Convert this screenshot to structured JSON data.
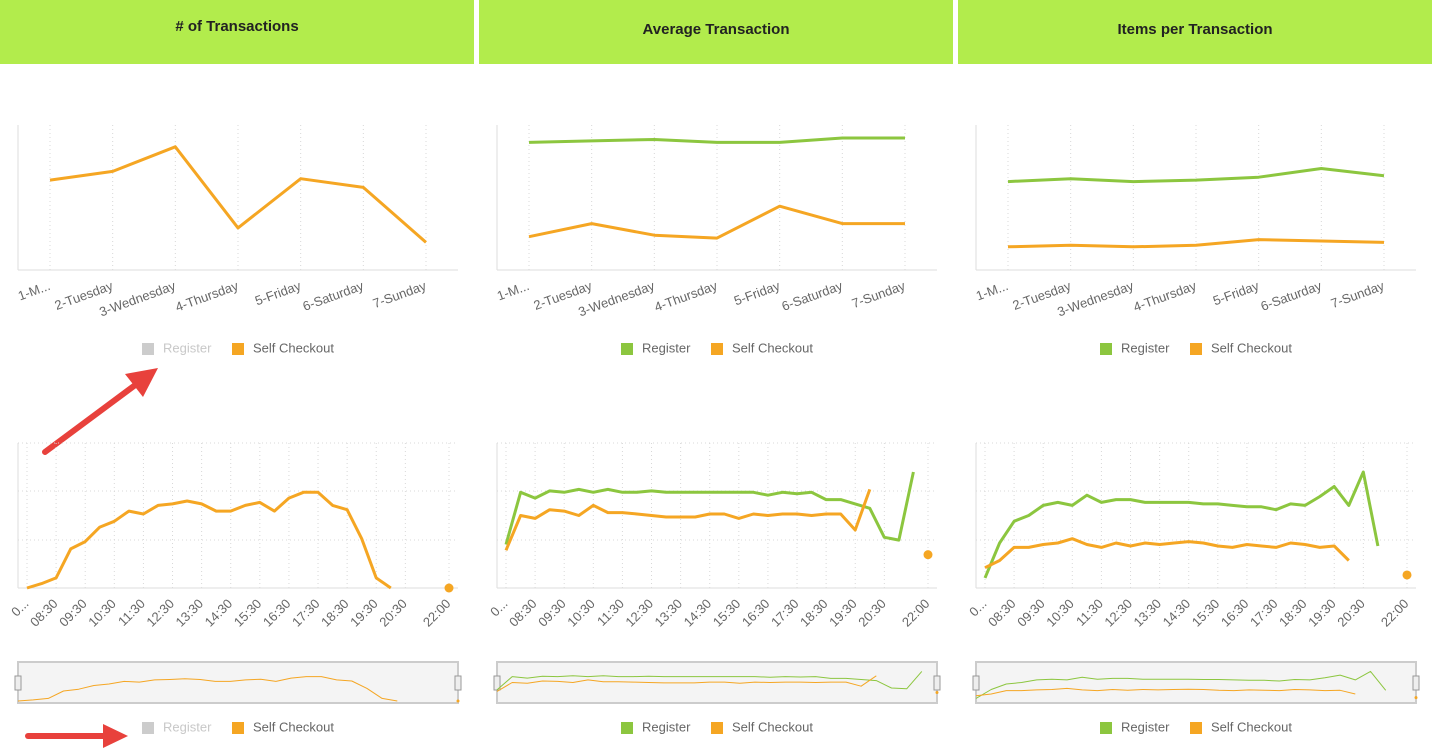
{
  "chart_data": [
    {
      "type": "line",
      "title": "# of Transactions",
      "categories": [
        "1-M...",
        "2-Tuesday",
        "3-Wednesday",
        "4-Thursday",
        "5-Friday",
        "6-Saturday",
        "7-Sunday"
      ],
      "ylim": [
        0,
        100
      ],
      "series": [
        {
          "name": "Register",
          "color": "#8cc63f",
          "visible": false,
          "values": [
            null,
            null,
            null,
            null,
            null,
            null,
            null
          ]
        },
        {
          "name": "Self Checkout",
          "color": "#f5a623",
          "values": [
            62,
            68,
            85,
            29,
            63,
            57,
            19
          ]
        }
      ]
    },
    {
      "type": "line",
      "title": "Average Transaction",
      "categories": [
        "1-M...",
        "2-Tuesday",
        "3-Wednesday",
        "4-Thursday",
        "5-Friday",
        "6-Saturday",
        "7-Sunday"
      ],
      "ylim": [
        0,
        100
      ],
      "series": [
        {
          "name": "Register",
          "color": "#8cc63f",
          "values": [
            88,
            89,
            90,
            88,
            88,
            91,
            91
          ]
        },
        {
          "name": "Self Checkout",
          "color": "#f5a623",
          "values": [
            23,
            32,
            24,
            22,
            44,
            32,
            32
          ]
        }
      ]
    },
    {
      "type": "line",
      "title": "Items per Transaction",
      "categories": [
        "1-M...",
        "2-Tuesday",
        "3-Wednesday",
        "4-Thursday",
        "5-Friday",
        "6-Saturday",
        "7-Sunday"
      ],
      "ylim": [
        0,
        100
      ],
      "series": [
        {
          "name": "Register",
          "color": "#8cc63f",
          "values": [
            61,
            63,
            61,
            62,
            64,
            70,
            65
          ]
        },
        {
          "name": "Self Checkout",
          "color": "#f5a623",
          "values": [
            16,
            17,
            16,
            17,
            21,
            20,
            19
          ]
        }
      ]
    },
    {
      "type": "line",
      "navigator": true,
      "categories": [
        "0...",
        null,
        "08:30",
        null,
        "09:30",
        null,
        "10:30",
        null,
        "11:30",
        null,
        "12:30",
        null,
        "13:30",
        null,
        "14:30",
        null,
        "15:30",
        null,
        "16:30",
        null,
        "17:30",
        null,
        "18:30",
        null,
        "19:30",
        null,
        "20:30",
        null,
        null,
        "22:00"
      ],
      "ylim": [
        0,
        100
      ],
      "series": [
        {
          "name": "Register",
          "color": "#8cc63f",
          "visible": false,
          "values": [
            null,
            null,
            null,
            null,
            null,
            null,
            null,
            null,
            null,
            null,
            null,
            null,
            null,
            null,
            null,
            null,
            null,
            null,
            null,
            null,
            null,
            null,
            null,
            null,
            null,
            null,
            null,
            null,
            null,
            null
          ]
        },
        {
          "name": "Self Checkout",
          "color": "#f5a623",
          "values": [
            0,
            3,
            7,
            27,
            32,
            42,
            46,
            53,
            51,
            57,
            58,
            60,
            58,
            53,
            53,
            57,
            59,
            53,
            62,
            66,
            66,
            57,
            54,
            34,
            7,
            0,
            null,
            null,
            null,
            0
          ]
        }
      ]
    },
    {
      "type": "line",
      "navigator": true,
      "categories": [
        "0...",
        null,
        "08:30",
        null,
        "09:30",
        null,
        "10:30",
        null,
        "11:30",
        null,
        "12:30",
        null,
        "13:30",
        null,
        "14:30",
        null,
        "15:30",
        null,
        "16:30",
        null,
        "17:30",
        null,
        "18:30",
        null,
        "19:30",
        null,
        "20:30",
        null,
        null,
        "22:00"
      ],
      "ylim": [
        0,
        100
      ],
      "series": [
        {
          "name": "Register",
          "color": "#8cc63f",
          "values": [
            30,
            66,
            62,
            67,
            66,
            68,
            66,
            68,
            66,
            66,
            67,
            66,
            66,
            66,
            66,
            66,
            66,
            66,
            64,
            66,
            65,
            66,
            61,
            61,
            58,
            55,
            35,
            33,
            80,
            null
          ]
        },
        {
          "name": "Self Checkout",
          "color": "#f5a623",
          "values": [
            26,
            50,
            48,
            54,
            53,
            50,
            57,
            52,
            52,
            51,
            50,
            49,
            49,
            49,
            51,
            51,
            48,
            51,
            50,
            51,
            51,
            50,
            51,
            51,
            40,
            68,
            null,
            null,
            null,
            23
          ]
        }
      ]
    },
    {
      "type": "line",
      "navigator": true,
      "categories": [
        "0...",
        null,
        "08:30",
        null,
        "09:30",
        null,
        "10:30",
        null,
        "11:30",
        null,
        "12:30",
        null,
        "13:30",
        null,
        "14:30",
        null,
        "15:30",
        null,
        "16:30",
        null,
        "17:30",
        null,
        "18:30",
        null,
        "19:30",
        null,
        "20:30",
        null,
        null,
        "22:00"
      ],
      "ylim": [
        0,
        100
      ],
      "series": [
        {
          "name": "Register",
          "color": "#8cc63f",
          "values": [
            7,
            31,
            46,
            50,
            57,
            59,
            57,
            64,
            59,
            61,
            61,
            59,
            59,
            59,
            59,
            58,
            58,
            57,
            56,
            56,
            54,
            58,
            57,
            63,
            70,
            57,
            80,
            29,
            null,
            null
          ]
        },
        {
          "name": "Self Checkout",
          "color": "#f5a623",
          "values": [
            14,
            19,
            28,
            28,
            30,
            31,
            34,
            30,
            28,
            31,
            29,
            31,
            30,
            31,
            32,
            31,
            29,
            28,
            30,
            29,
            28,
            31,
            30,
            28,
            29,
            19,
            null,
            null,
            null,
            9
          ]
        }
      ]
    }
  ]
}
